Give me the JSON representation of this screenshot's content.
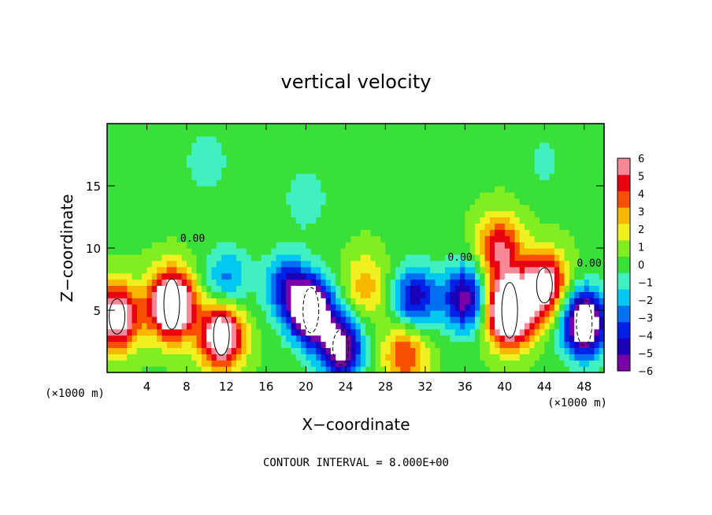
{
  "chart_data": {
    "type": "heatmap",
    "title": "vertical velocity",
    "xlabel": "X−coordinate",
    "ylabel": "Z−coordinate",
    "x_unit_left": "(×1000 m)",
    "x_unit_right": "(×1000 m)",
    "footnote": "CONTOUR INTERVAL = 8.000E+00",
    "contour_label": "0.00",
    "xlim": [
      0,
      50
    ],
    "ylim": [
      0,
      20
    ],
    "xticks": [
      4,
      8,
      12,
      16,
      20,
      24,
      28,
      32,
      36,
      40,
      44,
      48
    ],
    "yticks": [
      5,
      10,
      15
    ],
    "colorbar_ticks": [
      "6",
      "5",
      "4",
      "3",
      "2",
      "1",
      "0",
      "−1",
      "−2",
      "−3",
      "−4",
      "−5",
      "−6"
    ],
    "colorbar_range": [
      -6,
      6
    ],
    "colors": [
      "#7a00a8",
      "#1c00b8",
      "#0020e8",
      "#0070f0",
      "#00c8f0",
      "#40f0c0",
      "#3ae03a",
      "#80ee20",
      "#f0f020",
      "#f8b800",
      "#f85000",
      "#e80010",
      "#f88898"
    ],
    "features": [
      {
        "x": 6.5,
        "z": 5.5,
        "w": 10.0
      },
      {
        "x": 11.5,
        "z": 3.0,
        "w": 8.0
      },
      {
        "x": 1.0,
        "z": 4.5,
        "w": 7.0
      },
      {
        "x": 40.5,
        "z": 5.0,
        "w": 11.0
      },
      {
        "x": 39.5,
        "z": 10.0,
        "w": 5.0
      },
      {
        "x": 44.0,
        "z": 7.0,
        "w": 7.0
      },
      {
        "x": 30.0,
        "z": 1.5,
        "w": 4.0
      },
      {
        "x": 26.0,
        "z": 7.0,
        "w": 2.5
      },
      {
        "x": 20.5,
        "z": 5.0,
        "w": -9.0
      },
      {
        "x": 23.5,
        "z": 2.0,
        "w": -7.0
      },
      {
        "x": 18.0,
        "z": 7.0,
        "w": -4.0
      },
      {
        "x": 31.0,
        "z": 6.0,
        "w": -5.0
      },
      {
        "x": 36.0,
        "z": 6.0,
        "w": -6.0
      },
      {
        "x": 48.0,
        "z": 4.0,
        "w": -9.0
      },
      {
        "x": 12.0,
        "z": 7.5,
        "w": -3.0
      },
      {
        "x": 10.0,
        "z": 17.0,
        "w": -1.5
      },
      {
        "x": 20.0,
        "z": 14.0,
        "w": -1.5
      },
      {
        "x": 44.0,
        "z": 17.0,
        "w": -1.0
      }
    ]
  }
}
